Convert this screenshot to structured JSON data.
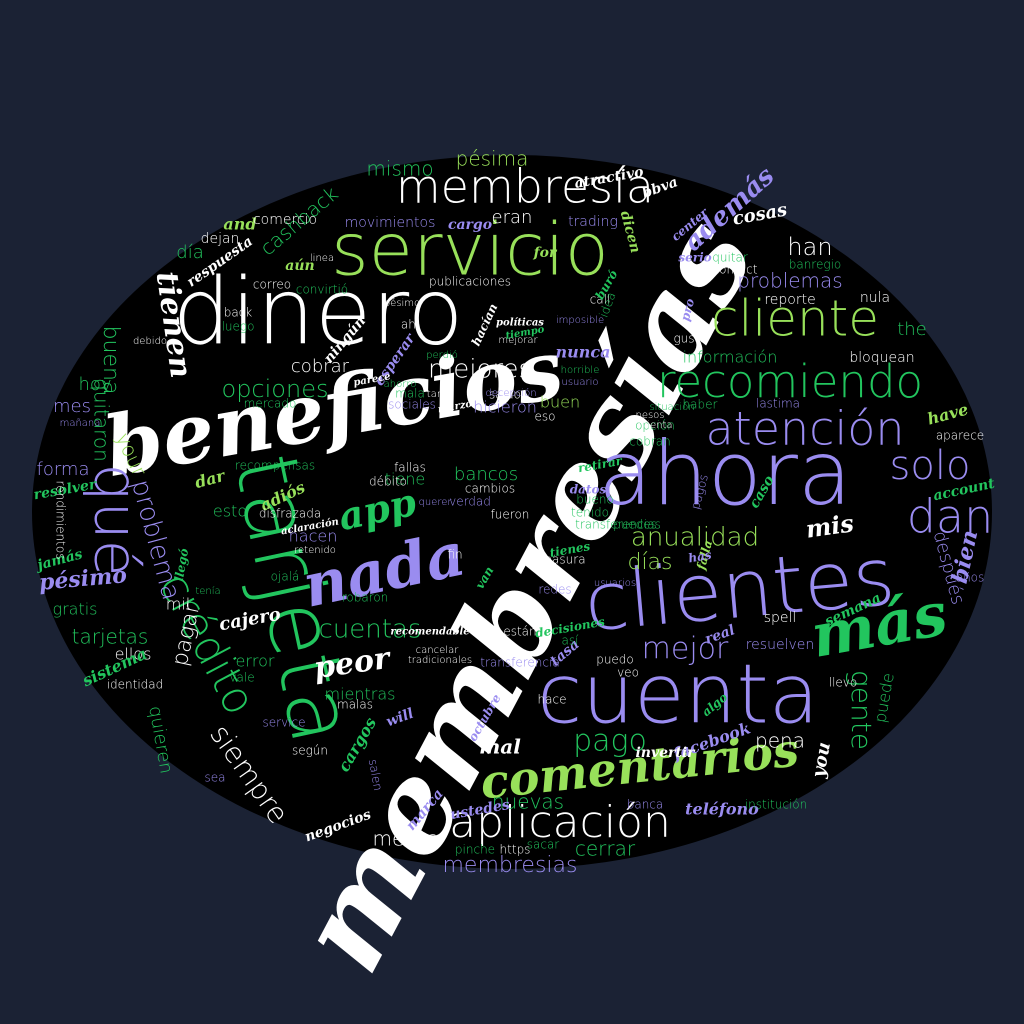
{
  "colors": {
    "background": "#1b2234",
    "ellipse": "#000000",
    "white": "#ffffff",
    "violet": "#9a8cf0",
    "lime": "#98e05a",
    "green": "#22c55e"
  },
  "words": [
    {
      "text": "membresías",
      "color": "white",
      "style": "script"
    },
    {
      "text": "beneficios",
      "color": "white",
      "style": "script"
    },
    {
      "text": "dinero",
      "color": "white",
      "style": "sans"
    },
    {
      "text": "tarjeta",
      "color": "green",
      "style": "sans"
    },
    {
      "text": "ahora",
      "color": "violet",
      "style": "sans"
    },
    {
      "text": "clientes",
      "color": "violet",
      "style": "sans"
    },
    {
      "text": "cuenta",
      "color": "violet",
      "style": "sans"
    },
    {
      "text": "servicio",
      "color": "lime",
      "style": "sans"
    },
    {
      "text": "membresía",
      "color": "white",
      "style": "sans"
    },
    {
      "text": "cliente",
      "color": "lime",
      "style": "sans"
    },
    {
      "text": "recomiendo",
      "color": "green",
      "style": "sans"
    },
    {
      "text": "atención",
      "color": "violet",
      "style": "sans"
    },
    {
      "text": "nada",
      "color": "violet",
      "style": "script"
    },
    {
      "text": "más",
      "color": "green",
      "style": "script"
    },
    {
      "text": "comentarios",
      "color": "lime",
      "style": "script"
    },
    {
      "text": "aplicación",
      "color": "white",
      "style": "sans"
    },
    {
      "text": "qué",
      "color": "violet",
      "style": "sans"
    },
    {
      "text": "crédito",
      "color": "green",
      "style": "sans"
    },
    {
      "text": "solo",
      "color": "violet",
      "style": "sans"
    },
    {
      "text": "dan",
      "color": "violet",
      "style": "sans"
    },
    {
      "text": "app",
      "color": "green",
      "style": "script"
    },
    {
      "text": "opciones",
      "color": "green",
      "style": "sans"
    },
    {
      "text": "mejores",
      "color": "white",
      "style": "sans"
    },
    {
      "text": "anualidad",
      "color": "lime",
      "style": "sans"
    },
    {
      "text": "mejor",
      "color": "violet",
      "style": "sans"
    },
    {
      "text": "pago",
      "color": "green",
      "style": "sans"
    },
    {
      "text": "cuentas",
      "color": "green",
      "style": "sans"
    },
    {
      "text": "peor",
      "color": "white",
      "style": "script"
    },
    {
      "text": "siempre",
      "color": "white",
      "style": "sans"
    },
    {
      "text": "gente",
      "color": "green",
      "style": "sans"
    },
    {
      "text": "problema",
      "color": "violet",
      "style": "sans"
    },
    {
      "text": "tienen",
      "color": "white",
      "style": "script"
    },
    {
      "text": "membresias",
      "color": "violet",
      "style": "sans"
    },
    {
      "text": "nuevas",
      "color": "green",
      "style": "sans"
    },
    {
      "text": "meses",
      "color": "white",
      "style": "sans"
    },
    {
      "text": "cerrar",
      "color": "green",
      "style": "sans"
    },
    {
      "text": "han",
      "color": "white",
      "style": "sans"
    },
    {
      "text": "problemas",
      "color": "violet",
      "style": "sans"
    },
    {
      "text": "además",
      "color": "violet",
      "style": "script"
    },
    {
      "text": "mis",
      "color": "white",
      "style": "script"
    },
    {
      "text": "pésima",
      "color": "lime",
      "style": "sans"
    },
    {
      "text": "mismo",
      "color": "green",
      "style": "sans"
    },
    {
      "text": "cashback",
      "color": "green",
      "style": "sans"
    },
    {
      "text": "buena",
      "color": "green",
      "style": "sans"
    },
    {
      "text": "quitaron",
      "color": "green",
      "style": "sans"
    },
    {
      "text": "your",
      "color": "lime",
      "style": "sans"
    },
    {
      "text": "forma",
      "color": "violet",
      "style": "sans"
    },
    {
      "text": "pésimo",
      "color": "violet",
      "style": "script"
    },
    {
      "text": "tarjetas",
      "color": "green",
      "style": "sans"
    },
    {
      "text": "pagar",
      "color": "white",
      "style": "sans"
    },
    {
      "text": "cobrar",
      "color": "white",
      "style": "sans"
    },
    {
      "text": "días",
      "color": "lime",
      "style": "sans"
    },
    {
      "text": "bancos",
      "color": "green",
      "style": "sans"
    },
    {
      "text": "tiene",
      "color": "green",
      "style": "sans"
    },
    {
      "text": "hacen",
      "color": "violet",
      "style": "sans"
    },
    {
      "text": "pena",
      "color": "white",
      "style": "sans"
    },
    {
      "text": "mal",
      "color": "white",
      "style": "script"
    },
    {
      "text": "bien",
      "color": "violet",
      "style": "script"
    },
    {
      "text": "después",
      "color": "violet",
      "style": "sans"
    },
    {
      "text": "información",
      "color": "green",
      "style": "sans"
    },
    {
      "text": "the",
      "color": "green",
      "style": "sans"
    },
    {
      "text": "eran",
      "color": "white",
      "style": "sans"
    },
    {
      "text": "cosas",
      "color": "white",
      "style": "script"
    },
    {
      "text": "día",
      "color": "green",
      "style": "sans"
    },
    {
      "text": "hoy",
      "color": "green",
      "style": "sans"
    },
    {
      "text": "mes",
      "color": "violet",
      "style": "sans"
    },
    {
      "text": "buen",
      "color": "lime",
      "style": "sans"
    },
    {
      "text": "hicieron",
      "color": "violet",
      "style": "sans"
    },
    {
      "text": "nunca",
      "color": "violet",
      "style": "script"
    },
    {
      "text": "quieren",
      "color": "green",
      "style": "sans"
    },
    {
      "text": "error",
      "color": "green",
      "style": "sans"
    },
    {
      "text": "cajero",
      "color": "white",
      "style": "script"
    },
    {
      "text": "mil",
      "color": "white",
      "style": "sans"
    },
    {
      "text": "gratis",
      "color": "green",
      "style": "sans"
    },
    {
      "text": "ellos",
      "color": "white",
      "style": "sans"
    },
    {
      "text": "esto",
      "color": "green",
      "style": "sans"
    },
    {
      "text": "adiós",
      "color": "lime",
      "style": "script"
    },
    {
      "text": "dar",
      "color": "lime",
      "style": "script"
    },
    {
      "text": "facebook",
      "color": "violet",
      "style": "script"
    },
    {
      "text": "invertir",
      "color": "white",
      "style": "script"
    },
    {
      "text": "puede",
      "color": "green",
      "style": "sans"
    },
    {
      "text": "teléfono",
      "color": "violet",
      "style": "script"
    },
    {
      "text": "cargos",
      "color": "green",
      "style": "script"
    },
    {
      "text": "mientras",
      "color": "green",
      "style": "sans"
    },
    {
      "text": "spell",
      "color": "white",
      "style": "sans"
    },
    {
      "text": "resuelven",
      "color": "violet",
      "style": "sans"
    },
    {
      "text": "reporte",
      "color": "white",
      "style": "sans"
    },
    {
      "text": "nula",
      "color": "white",
      "style": "sans"
    },
    {
      "text": "bloquean",
      "color": "white",
      "style": "sans"
    },
    {
      "text": "have",
      "color": "lime",
      "style": "script"
    },
    {
      "text": "atractivo",
      "color": "white",
      "style": "script"
    },
    {
      "text": "bbva",
      "color": "white",
      "style": "script"
    },
    {
      "text": "and",
      "color": "lime",
      "style": "script"
    },
    {
      "text": "respuesta",
      "color": "white",
      "style": "script"
    },
    {
      "text": "movimientos",
      "color": "violet",
      "style": "sans"
    },
    {
      "text": "trading",
      "color": "violet",
      "style": "sans"
    },
    {
      "text": "comercio",
      "color": "white",
      "style": "sans"
    },
    {
      "text": "dejan",
      "color": "white",
      "style": "sans"
    },
    {
      "text": "aún",
      "color": "lime",
      "style": "script"
    },
    {
      "text": "cargo",
      "color": "violet",
      "style": "script"
    },
    {
      "text": "for",
      "color": "lime",
      "style": "script"
    },
    {
      "text": "contact",
      "color": "white",
      "style": "sans"
    },
    {
      "text": "banregio",
      "color": "green",
      "style": "sans"
    },
    {
      "text": "quitar",
      "color": "green",
      "style": "sans"
    },
    {
      "text": "center",
      "color": "violet",
      "style": "script"
    },
    {
      "text": "serio",
      "color": "violet",
      "style": "script"
    },
    {
      "text": "dicen",
      "color": "lime",
      "style": "script"
    },
    {
      "text": "publicaciones",
      "color": "white",
      "style": "sans"
    },
    {
      "text": "call",
      "color": "white",
      "style": "sans"
    },
    {
      "text": "idea",
      "color": "green",
      "style": "sans"
    },
    {
      "text": "pro",
      "color": "violet",
      "style": "script"
    },
    {
      "text": "gusto",
      "color": "white",
      "style": "sans"
    },
    {
      "text": "back",
      "color": "white",
      "style": "sans"
    },
    {
      "text": "luego",
      "color": "green",
      "style": "sans"
    },
    {
      "text": "correo",
      "color": "white",
      "style": "sans"
    },
    {
      "text": "convirtió",
      "color": "green",
      "style": "sans"
    },
    {
      "text": "ahí",
      "color": "white",
      "style": "sans"
    },
    {
      "text": "ningún",
      "color": "white",
      "style": "script"
    },
    {
      "text": "esperar",
      "color": "violet",
      "style": "script"
    },
    {
      "text": "mala",
      "color": "green",
      "style": "sans"
    },
    {
      "text": "sociales",
      "color": "violet",
      "style": "sans"
    },
    {
      "text": "mercado",
      "color": "green",
      "style": "sans"
    },
    {
      "text": "saldo",
      "color": "white",
      "style": "sans"
    },
    {
      "text": "eso",
      "color": "white",
      "style": "sans"
    },
    {
      "text": "opción",
      "color": "green",
      "style": "sans"
    },
    {
      "text": "cobran",
      "color": "green",
      "style": "sans"
    },
    {
      "text": "haber",
      "color": "green",
      "style": "sans"
    },
    {
      "text": "lastima",
      "color": "violet",
      "style": "sans"
    },
    {
      "text": "aparece",
      "color": "white",
      "style": "sans"
    },
    {
      "text": "account",
      "color": "green",
      "style": "script"
    },
    {
      "text": "resolver",
      "color": "green",
      "style": "script"
    },
    {
      "text": "caso",
      "color": "green",
      "style": "script"
    },
    {
      "text": "fallas",
      "color": "white",
      "style": "sans"
    },
    {
      "text": "cambios",
      "color": "white",
      "style": "sans"
    },
    {
      "text": "recompensas",
      "color": "green",
      "style": "sans"
    },
    {
      "text": "débito",
      "color": "white",
      "style": "sans"
    },
    {
      "text": "pagos",
      "color": "violet",
      "style": "sans"
    },
    {
      "text": "fueron",
      "color": "white",
      "style": "sans"
    },
    {
      "text": "tenido",
      "color": "green",
      "style": "sans"
    },
    {
      "text": "puedes",
      "color": "green",
      "style": "sans"
    },
    {
      "text": "transferencias",
      "color": "green",
      "style": "sans"
    },
    {
      "text": "disfrazada",
      "color": "white",
      "style": "sans"
    },
    {
      "text": "verdad",
      "color": "violet",
      "style": "sans"
    },
    {
      "text": "bueno",
      "color": "green",
      "style": "sans"
    },
    {
      "text": "basura",
      "color": "white",
      "style": "sans"
    },
    {
      "text": "falla",
      "color": "lime",
      "style": "script"
    },
    {
      "text": "tienes",
      "color": "green",
      "style": "script"
    },
    {
      "text": "años",
      "color": "violet",
      "style": "sans"
    },
    {
      "text": "semana",
      "color": "green",
      "style": "script"
    },
    {
      "text": "real",
      "color": "violet",
      "style": "script"
    },
    {
      "text": "redes",
      "color": "violet",
      "style": "sans"
    },
    {
      "text": "robaron",
      "color": "green",
      "style": "sans"
    },
    {
      "text": "ojalá",
      "color": "green",
      "style": "sans"
    },
    {
      "text": "llegó",
      "color": "green",
      "style": "script"
    },
    {
      "text": "jamás",
      "color": "green",
      "style": "script"
    },
    {
      "text": "rendimientos",
      "color": "white",
      "style": "sans"
    },
    {
      "text": "sistema",
      "color": "green",
      "style": "script"
    },
    {
      "text": "identidad",
      "color": "white",
      "style": "sans"
    },
    {
      "text": "vale",
      "color": "green",
      "style": "sans"
    },
    {
      "text": "service",
      "color": "violet",
      "style": "sans"
    },
    {
      "text": "malas",
      "color": "white",
      "style": "sans"
    },
    {
      "text": "will",
      "color": "violet",
      "style": "script"
    },
    {
      "text": "según",
      "color": "white",
      "style": "sans"
    },
    {
      "text": "sea",
      "color": "violet",
      "style": "sans"
    },
    {
      "text": "salen",
      "color": "violet",
      "style": "sans"
    },
    {
      "text": "negocios",
      "color": "white",
      "style": "script"
    },
    {
      "text": "ustedes",
      "color": "violet",
      "style": "script"
    },
    {
      "text": "marca",
      "color": "violet",
      "style": "script"
    },
    {
      "text": "pinche",
      "color": "green",
      "style": "sans"
    },
    {
      "text": "https",
      "color": "white",
      "style": "sans"
    },
    {
      "text": "sacar",
      "color": "green",
      "style": "sans"
    },
    {
      "text": "banca",
      "color": "violet",
      "style": "sans"
    },
    {
      "text": "institución",
      "color": "green",
      "style": "sans"
    },
    {
      "text": "you",
      "color": "white",
      "style": "script"
    },
    {
      "text": "hace",
      "color": "white",
      "style": "sans"
    },
    {
      "text": "algo",
      "color": "green",
      "style": "script"
    },
    {
      "text": "llevo",
      "color": "white",
      "style": "sans"
    },
    {
      "text": "tasa",
      "color": "violet",
      "style": "script"
    },
    {
      "text": "transferencia",
      "color": "violet",
      "style": "sans"
    },
    {
      "text": "así",
      "color": "green",
      "style": "sans"
    },
    {
      "text": "puedo",
      "color": "white",
      "style": "sans"
    },
    {
      "text": "veo",
      "color": "white",
      "style": "sans"
    },
    {
      "text": "octubre",
      "color": "violet",
      "style": "script"
    },
    {
      "text": "están",
      "color": "white",
      "style": "sans"
    },
    {
      "text": "decisiones",
      "color": "green",
      "style": "script"
    },
    {
      "text": "tradicionales",
      "color": "white",
      "style": "sans"
    },
    {
      "text": "cancelar",
      "color": "white",
      "style": "sans"
    },
    {
      "text": "recomendable",
      "color": "white",
      "style": "script"
    },
    {
      "text": "van",
      "color": "green",
      "style": "script"
    },
    {
      "text": "fin",
      "color": "white",
      "style": "sans"
    },
    {
      "text": "retenido",
      "color": "white",
      "style": "sans"
    },
    {
      "text": "aclaración",
      "color": "white",
      "style": "script"
    },
    {
      "text": "tenía",
      "color": "green",
      "style": "sans"
    },
    {
      "text": "datos",
      "color": "violet",
      "style": "script"
    },
    {
      "text": "has",
      "color": "violet",
      "style": "script"
    },
    {
      "text": "querer",
      "color": "violet",
      "style": "sans"
    },
    {
      "text": "usuarios",
      "color": "violet",
      "style": "sans"
    },
    {
      "text": "retirar",
      "color": "green",
      "style": "script"
    },
    {
      "text": "mañana",
      "color": "violet",
      "style": "sans"
    },
    {
      "text": "debido",
      "color": "white",
      "style": "sans"
    },
    {
      "text": "tanto",
      "color": "white",
      "style": "sans"
    },
    {
      "text": "marzo",
      "color": "white",
      "style": "script"
    },
    {
      "text": "decepción",
      "color": "violet",
      "style": "sans"
    },
    {
      "text": "situación",
      "color": "green",
      "style": "sans"
    },
    {
      "text": "mejorar",
      "color": "white",
      "style": "sans"
    },
    {
      "text": "políticas",
      "color": "white",
      "style": "script"
    },
    {
      "text": "tiempo",
      "color": "green",
      "style": "script"
    },
    {
      "text": "imposible",
      "color": "violet",
      "style": "sans"
    },
    {
      "text": "horrible",
      "color": "green",
      "style": "sans"
    },
    {
      "text": "usuario",
      "color": "violet",
      "style": "sans"
    },
    {
      "text": "pesos",
      "color": "white",
      "style": "sans"
    },
    {
      "text": "mienta",
      "color": "white",
      "style": "sans"
    },
    {
      "text": "perdió",
      "color": "green",
      "style": "sans"
    },
    {
      "text": "pésimo",
      "color": "white",
      "style": "sans"
    },
    {
      "text": "hacían",
      "color": "white",
      "style": "script"
    },
    {
      "text": "linea",
      "color": "white",
      "style": "sans"
    },
    {
      "text": "buró",
      "color": "green",
      "style": "script"
    },
    {
      "text": "parece",
      "color": "white",
      "style": "script"
    },
    {
      "text": "ahorro",
      "color": "green",
      "style": "sans"
    }
  ]
}
